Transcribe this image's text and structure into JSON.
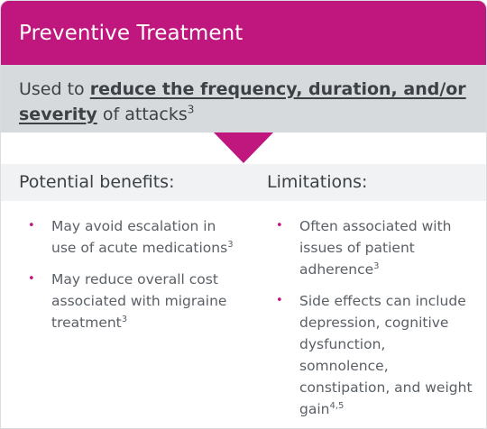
{
  "header": {
    "title": "Preventive Treatment"
  },
  "subhead": {
    "prefix": "Used to ",
    "emphasis_line1": "reduce the frequency, duration, and/or",
    "emphasis_line2": "severity",
    "suffix": " of attacks",
    "ref": "3"
  },
  "benefits": {
    "heading": "Potential benefits:",
    "items": [
      {
        "text": "May avoid escalation in use of acute medications",
        "ref": "3"
      },
      {
        "text": "May reduce overall cost associated with migraine treatment",
        "ref": "3"
      }
    ]
  },
  "limitations": {
    "heading": "Limitations:",
    "items": [
      {
        "text": "Often associated with issues of patient adherence",
        "ref": "3"
      },
      {
        "text": "Side effects can include depression, cognitive dysfunction, somnolence, constipation, and weight gain",
        "ref": "4,5"
      }
    ]
  },
  "bullet_glyph": "•",
  "colors": {
    "accent": "#c0177e",
    "band": "#d7dadc",
    "columns_header": "#f1f2f3"
  }
}
